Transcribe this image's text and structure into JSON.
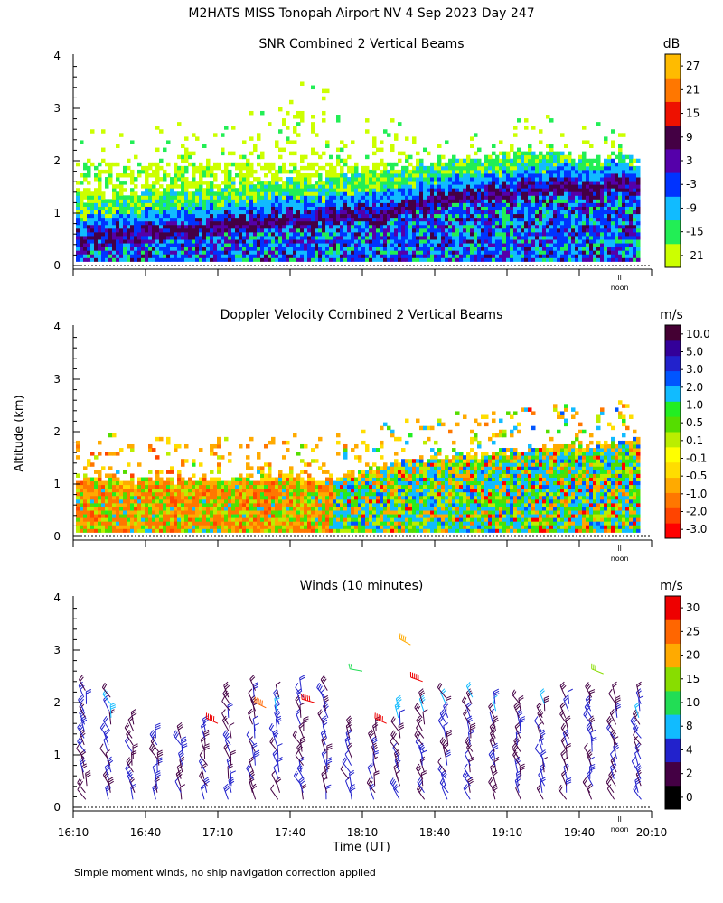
{
  "figure_title": "M2HATS MISS Tonopah Airport NV   4 Sep 2023 Day 247",
  "shared_ylabel": "Altitude (km)",
  "footnote": "Simple moment winds, no ship navigation correction applied",
  "noon_label": "noon",
  "noon_mark": "ll",
  "colors": {
    "snr_scale": [
      "#ccff00",
      "#22ee55",
      "#11bbff",
      "#0033ff",
      "#5500aa",
      "#440044",
      "#ee1100",
      "#ff7700",
      "#ffbb00"
    ],
    "doppler_scale": [
      "#ff0000",
      "#ff4400",
      "#ff7700",
      "#ffaa00",
      "#ffdd00",
      "#ffff00",
      "#bbee00",
      "#55dd00",
      "#22ee22",
      "#11bbff",
      "#0055ff",
      "#2222cc",
      "#330099",
      "#440033"
    ],
    "wind_scale": [
      "#000000",
      "#440044",
      "#2222cc",
      "#11bbff",
      "#22dd55",
      "#88dd00",
      "#ffaa00",
      "#ff6600",
      "#ee0000"
    ],
    "frame": "#000000"
  },
  "chart_data": [
    {
      "type": "heatmap",
      "title": "SNR Combined 2 Vertical Beams",
      "ylabel": "Altitude (km)",
      "ylim": [
        0,
        4
      ],
      "yticks": [
        "0",
        "1",
        "2",
        "3",
        "4"
      ],
      "colorbar_unit": "dB",
      "colorbar_labels": [
        "-21",
        "-15",
        "-9",
        "-3",
        "3",
        "9",
        "15",
        "21",
        "27"
      ],
      "time_range_utc": [
        "16:10",
        "20:10"
      ],
      "echo_top_km": [
        1.9,
        1.95,
        1.95,
        2.0,
        2.0,
        2.0,
        2.05,
        2.1,
        2.1,
        2.1,
        2.2,
        2.3,
        2.4,
        2.6,
        2.9,
        3.0,
        2.5,
        2.3,
        2.4,
        2.2,
        2.1,
        2.1,
        2.0,
        2.1,
        2.0,
        2.0,
        2.1,
        2.2,
        2.3,
        2.2,
        2.1,
        2.0,
        1.95,
        2.0,
        1.95,
        1.9
      ],
      "strong_layer_top_km": [
        0.6,
        0.65,
        0.7,
        0.7,
        0.75,
        0.75,
        0.8,
        0.8,
        0.85,
        0.9,
        0.9,
        0.95,
        1.0,
        1.0,
        1.0,
        1.0,
        1.05,
        1.1,
        1.1,
        1.15,
        1.2,
        1.3,
        1.35,
        1.4,
        1.4,
        1.45,
        1.5,
        1.5,
        1.55,
        1.55,
        1.6,
        1.6,
        1.6,
        1.65,
        1.65,
        1.65
      ]
    },
    {
      "type": "heatmap",
      "title": "Doppler Velocity Combined 2 Vertical Beams",
      "ylabel": "Altitude (km)",
      "ylim": [
        0,
        4
      ],
      "yticks": [
        "0",
        "1",
        "2",
        "3",
        "4"
      ],
      "colorbar_unit": "m/s",
      "colorbar_labels": [
        "-3.0",
        "-2.0",
        "-1.0",
        "-0.5",
        "-0.1",
        "0.1",
        "0.5",
        "1.0",
        "2.0",
        "3.0",
        "5.0",
        "10.0"
      ],
      "time_range_utc": [
        "16:10",
        "20:10"
      ],
      "layer_top_km": [
        1.05,
        1.05,
        1.1,
        1.05,
        1.05,
        1.1,
        1.05,
        1.1,
        1.05,
        1.05,
        1.1,
        1.1,
        1.1,
        1.15,
        1.1,
        1.1,
        1.1,
        1.15,
        1.2,
        1.3,
        1.4,
        1.45,
        1.5,
        1.5,
        1.55,
        1.5,
        1.6,
        1.6,
        1.65,
        1.65,
        1.7,
        1.7,
        1.75,
        1.8,
        1.8,
        1.8
      ]
    },
    {
      "type": "scatter",
      "title": "Winds (10 minutes)",
      "xlabel": "Time (UT)",
      "ylabel": "Altitude (km)",
      "ylim": [
        0,
        4
      ],
      "yticks": [
        "0",
        "1",
        "2",
        "3",
        "4"
      ],
      "xticks": [
        "16:10",
        "16:40",
        "17:10",
        "17:40",
        "18:10",
        "18:40",
        "19:10",
        "19:40",
        "20:10"
      ],
      "colorbar_unit": "m/s",
      "colorbar_labels": [
        "0",
        "2",
        "4",
        "8",
        "10",
        "15",
        "20",
        "25",
        "30"
      ],
      "profile_times_min_after_1610": [
        5,
        15,
        25,
        35,
        45,
        55,
        65,
        75,
        85,
        95,
        105,
        115,
        125,
        135,
        145,
        155,
        165,
        175,
        185,
        195,
        205,
        215,
        225,
        235
      ],
      "profile_top_km": [
        2.3,
        2.2,
        1.7,
        1.4,
        1.4,
        1.5,
        2.1,
        2.3,
        2.2,
        2.3,
        2.3,
        1.5,
        1.5,
        1.9,
        2.0,
        2.2,
        2.1,
        2.0,
        2.0,
        2.0,
        2.1,
        2.1,
        2.1,
        2.1
      ],
      "upper_winds": [
        {
          "t_min": 140,
          "alt_km": 3.1,
          "speed_ms": 22
        },
        {
          "t_min": 120,
          "alt_km": 2.6,
          "speed_ms": 12
        },
        {
          "t_min": 145,
          "alt_km": 2.4,
          "speed_ms": 30
        },
        {
          "t_min": 100,
          "alt_km": 2.0,
          "speed_ms": 30
        },
        {
          "t_min": 60,
          "alt_km": 1.6,
          "speed_ms": 30
        },
        {
          "t_min": 130,
          "alt_km": 1.6,
          "speed_ms": 30
        },
        {
          "t_min": 220,
          "alt_km": 2.55,
          "speed_ms": 15
        },
        {
          "t_min": 80,
          "alt_km": 1.9,
          "speed_ms": 25
        }
      ]
    }
  ]
}
